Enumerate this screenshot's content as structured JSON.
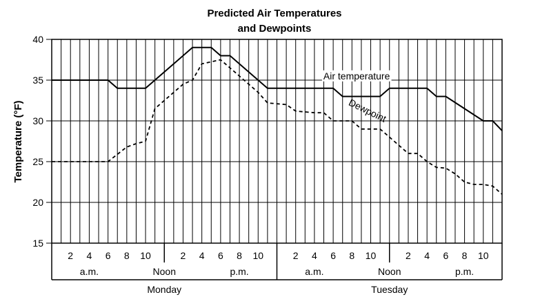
{
  "chart_data": {
    "type": "line",
    "title_lines": [
      "Predicted Air Temperatures",
      "and Dewpoints"
    ],
    "ylabel": "Temperature (°F)",
    "xlabel": "",
    "ylim": [
      15,
      40
    ],
    "yticks": [
      15,
      20,
      25,
      30,
      35,
      40
    ],
    "xlim_hours": [
      0,
      48
    ],
    "grid": true,
    "legend": "inline labels",
    "hour_tick_labels": [
      {
        "hour": 2,
        "label": "2"
      },
      {
        "hour": 4,
        "label": "4"
      },
      {
        "hour": 6,
        "label": "6"
      },
      {
        "hour": 8,
        "label": "8"
      },
      {
        "hour": 10,
        "label": "10"
      },
      {
        "hour": 14,
        "label": "2"
      },
      {
        "hour": 16,
        "label": "4"
      },
      {
        "hour": 18,
        "label": "6"
      },
      {
        "hour": 20,
        "label": "8"
      },
      {
        "hour": 22,
        "label": "10"
      },
      {
        "hour": 26,
        "label": "2"
      },
      {
        "hour": 28,
        "label": "4"
      },
      {
        "hour": 30,
        "label": "6"
      },
      {
        "hour": 32,
        "label": "8"
      },
      {
        "hour": 34,
        "label": "10"
      },
      {
        "hour": 38,
        "label": "2"
      },
      {
        "hour": 40,
        "label": "4"
      },
      {
        "hour": 42,
        "label": "6"
      },
      {
        "hour": 44,
        "label": "8"
      },
      {
        "hour": 46,
        "label": "10"
      }
    ],
    "period_labels": [
      {
        "hour": 4,
        "label": "a.m."
      },
      {
        "hour": 12,
        "label": "Noon"
      },
      {
        "hour": 20,
        "label": "p.m."
      },
      {
        "hour": 28,
        "label": "a.m."
      },
      {
        "hour": 36,
        "label": "Noon"
      },
      {
        "hour": 44,
        "label": "p.m."
      }
    ],
    "days": [
      {
        "start_hour": 0,
        "end_hour": 24,
        "label": "Monday"
      },
      {
        "start_hour": 24,
        "end_hour": 48,
        "label": "Tuesday"
      }
    ],
    "series": [
      {
        "name": "Air temperature",
        "style": "solid",
        "color": "#000000",
        "x": [
          0,
          6,
          7,
          10,
          15,
          17,
          18,
          19,
          23,
          30,
          31,
          35,
          36,
          40,
          41,
          42,
          46,
          47,
          48
        ],
        "y": [
          35,
          35,
          34,
          34,
          39,
          39,
          38,
          38,
          34,
          34,
          33,
          33,
          34,
          34,
          33,
          33,
          30,
          30,
          28.8
        ]
      },
      {
        "name": "Dewpoint",
        "style": "dashed",
        "color": "#000000",
        "x": [
          0,
          6,
          8,
          9,
          10,
          11,
          14,
          15,
          16,
          18,
          22,
          23,
          25,
          26,
          28,
          29,
          30,
          32,
          33,
          35,
          36,
          37,
          38,
          39,
          40,
          41,
          42,
          43,
          44,
          45,
          46,
          47,
          48
        ],
        "y": [
          25,
          25,
          26.8,
          27.2,
          27.5,
          31.5,
          34.5,
          35,
          37,
          37.5,
          33.5,
          32.2,
          32,
          31.2,
          31,
          31,
          30,
          30,
          29,
          29,
          28,
          27,
          26,
          26,
          25,
          24.3,
          24.2,
          23.5,
          22.5,
          22.2,
          22.2,
          22,
          21
        ]
      }
    ],
    "annotations": [
      {
        "text": "Air temperature",
        "hour": 32.5,
        "value": 35.1,
        "rotate": 0
      },
      {
        "text": "Dewpoint",
        "hour": 33.5,
        "value": 30.9,
        "rotate": 26
      }
    ]
  }
}
